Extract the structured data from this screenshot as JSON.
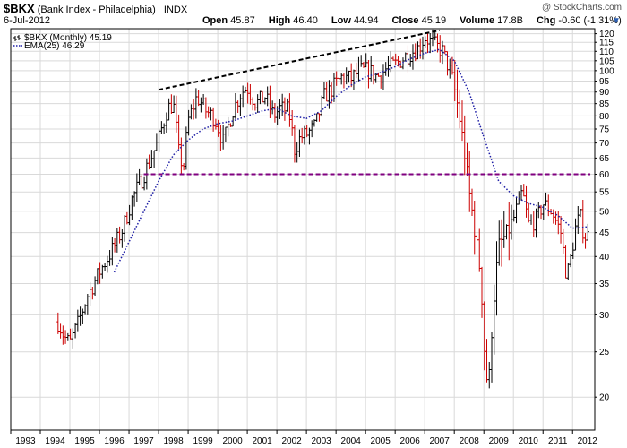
{
  "header": {
    "symbol": "$BKX",
    "name": "(Bank Index - Philadelphia)",
    "exchange": "INDX",
    "watermark": "@ StockCharts.com",
    "date": "6-Jul-2012",
    "open_label": "Open",
    "open": "45.87",
    "high_label": "High",
    "high": "46.40",
    "low_label": "Low",
    "low": "44.94",
    "close_label": "Close",
    "close": "45.19",
    "volume_label": "Volume",
    "volume": "17.8B",
    "chg_label": "Chg",
    "chg": "-0.60 (-1.31%)"
  },
  "chart_data": {
    "type": "ohlc",
    "title": "",
    "scale": "log",
    "ylim": [
      17,
      123
    ],
    "xlim": [
      1993.0,
      2012.75
    ],
    "grid": true,
    "legend_position": "top-left",
    "legend": [
      {
        "label": "$BKX (Monthly) 45.19",
        "style": "ohlc bars"
      },
      {
        "label": "EMA(25) 46.29",
        "style": "dotted blue line"
      }
    ],
    "y_ticks": [
      20,
      25,
      30,
      35,
      40,
      45,
      50,
      55,
      60,
      65,
      70,
      75,
      80,
      85,
      90,
      95,
      100,
      105,
      110,
      115,
      120
    ],
    "x_tick_labels": [
      "1993",
      "1994",
      "1995",
      "1996",
      "1997",
      "1998",
      "1999",
      "2000",
      "2001",
      "2002",
      "2003",
      "2004",
      "2005",
      "2006",
      "2007",
      "2008",
      "2009",
      "2010",
      "2011",
      "2012"
    ],
    "price_anchors": [
      [
        1994.6,
        29
      ],
      [
        1994.8,
        27
      ],
      [
        1995.0,
        26
      ],
      [
        1995.3,
        29
      ],
      [
        1995.6,
        33
      ],
      [
        1995.9,
        36
      ],
      [
        1996.2,
        39
      ],
      [
        1996.5,
        42
      ],
      [
        1996.8,
        46
      ],
      [
        1997.1,
        53
      ],
      [
        1997.4,
        58
      ],
      [
        1997.7,
        64
      ],
      [
        1998.0,
        71
      ],
      [
        1998.3,
        83
      ],
      [
        1998.5,
        85
      ],
      [
        1998.7,
        65
      ],
      [
        1998.85,
        63
      ],
      [
        1999.0,
        78
      ],
      [
        1999.3,
        88
      ],
      [
        1999.6,
        82
      ],
      [
        1999.9,
        79
      ],
      [
        2000.2,
        70
      ],
      [
        2000.5,
        82
      ],
      [
        2000.8,
        90
      ],
      [
        2001.0,
        92
      ],
      [
        2001.3,
        85
      ],
      [
        2001.6,
        88
      ],
      [
        2001.9,
        80
      ],
      [
        2002.1,
        83
      ],
      [
        2002.4,
        82
      ],
      [
        2002.6,
        68
      ],
      [
        2002.8,
        72
      ],
      [
        2003.0,
        73
      ],
      [
        2003.3,
        76
      ],
      [
        2003.6,
        88
      ],
      [
        2003.9,
        92
      ],
      [
        2004.2,
        97
      ],
      [
        2004.5,
        96
      ],
      [
        2004.8,
        100
      ],
      [
        2005.1,
        100
      ],
      [
        2005.4,
        97
      ],
      [
        2005.7,
        101
      ],
      [
        2006.0,
        103
      ],
      [
        2006.4,
        108
      ],
      [
        2006.8,
        112
      ],
      [
        2007.0,
        118
      ],
      [
        2007.3,
        114
      ],
      [
        2007.6,
        110
      ],
      [
        2007.9,
        98
      ],
      [
        2008.1,
        85
      ],
      [
        2008.3,
        70
      ],
      [
        2008.5,
        55
      ],
      [
        2008.7,
        45
      ],
      [
        2008.9,
        36
      ],
      [
        2009.0,
        26
      ],
      [
        2009.15,
        20
      ],
      [
        2009.3,
        30
      ],
      [
        2009.5,
        42
      ],
      [
        2009.8,
        45
      ],
      [
        2010.0,
        48
      ],
      [
        2010.3,
        55
      ],
      [
        2010.5,
        47
      ],
      [
        2010.8,
        48
      ],
      [
        2011.0,
        52
      ],
      [
        2011.3,
        50
      ],
      [
        2011.6,
        45
      ],
      [
        2011.8,
        36
      ],
      [
        2011.95,
        40
      ],
      [
        2012.1,
        46
      ],
      [
        2012.25,
        49
      ],
      [
        2012.4,
        44
      ],
      [
        2012.55,
        45.19
      ]
    ],
    "ema_25": [
      [
        1996.5,
        37
      ],
      [
        1997.0,
        43
      ],
      [
        1997.5,
        50
      ],
      [
        1998.0,
        58
      ],
      [
        1998.5,
        66
      ],
      [
        1999.0,
        71
      ],
      [
        1999.5,
        75
      ],
      [
        2000.0,
        77
      ],
      [
        2000.5,
        78
      ],
      [
        2001.0,
        80
      ],
      [
        2001.5,
        82
      ],
      [
        2002.0,
        83
      ],
      [
        2002.5,
        80
      ],
      [
        2003.0,
        79
      ],
      [
        2003.5,
        82
      ],
      [
        2004.0,
        88
      ],
      [
        2004.5,
        93
      ],
      [
        2005.0,
        97
      ],
      [
        2005.5,
        99
      ],
      [
        2006.0,
        102
      ],
      [
        2006.5,
        106
      ],
      [
        2007.0,
        109
      ],
      [
        2007.5,
        111
      ],
      [
        2008.0,
        105
      ],
      [
        2008.5,
        90
      ],
      [
        2009.0,
        72
      ],
      [
        2009.5,
        58
      ],
      [
        2010.0,
        54
      ],
      [
        2010.5,
        52
      ],
      [
        2011.0,
        51
      ],
      [
        2011.5,
        49
      ],
      [
        2012.0,
        46
      ],
      [
        2012.5,
        46.29
      ]
    ],
    "annotations": [
      {
        "type": "trendline",
        "style": "dashed black",
        "points": [
          [
            1998.0,
            91
          ],
          [
            2007.5,
            122
          ]
        ]
      },
      {
        "type": "horizontal",
        "style": "dashed purple",
        "value": 60,
        "from": 1997.5,
        "to": 2012.6
      }
    ]
  },
  "colors": {
    "up_bar": "#000000",
    "down_bar": "#cc0000",
    "ema": "#1f1fa6",
    "horizontal_line": "#800080",
    "trendline": "#000000",
    "grid": "#d9d9d9",
    "chg_caret": "#2b5fb3"
  }
}
